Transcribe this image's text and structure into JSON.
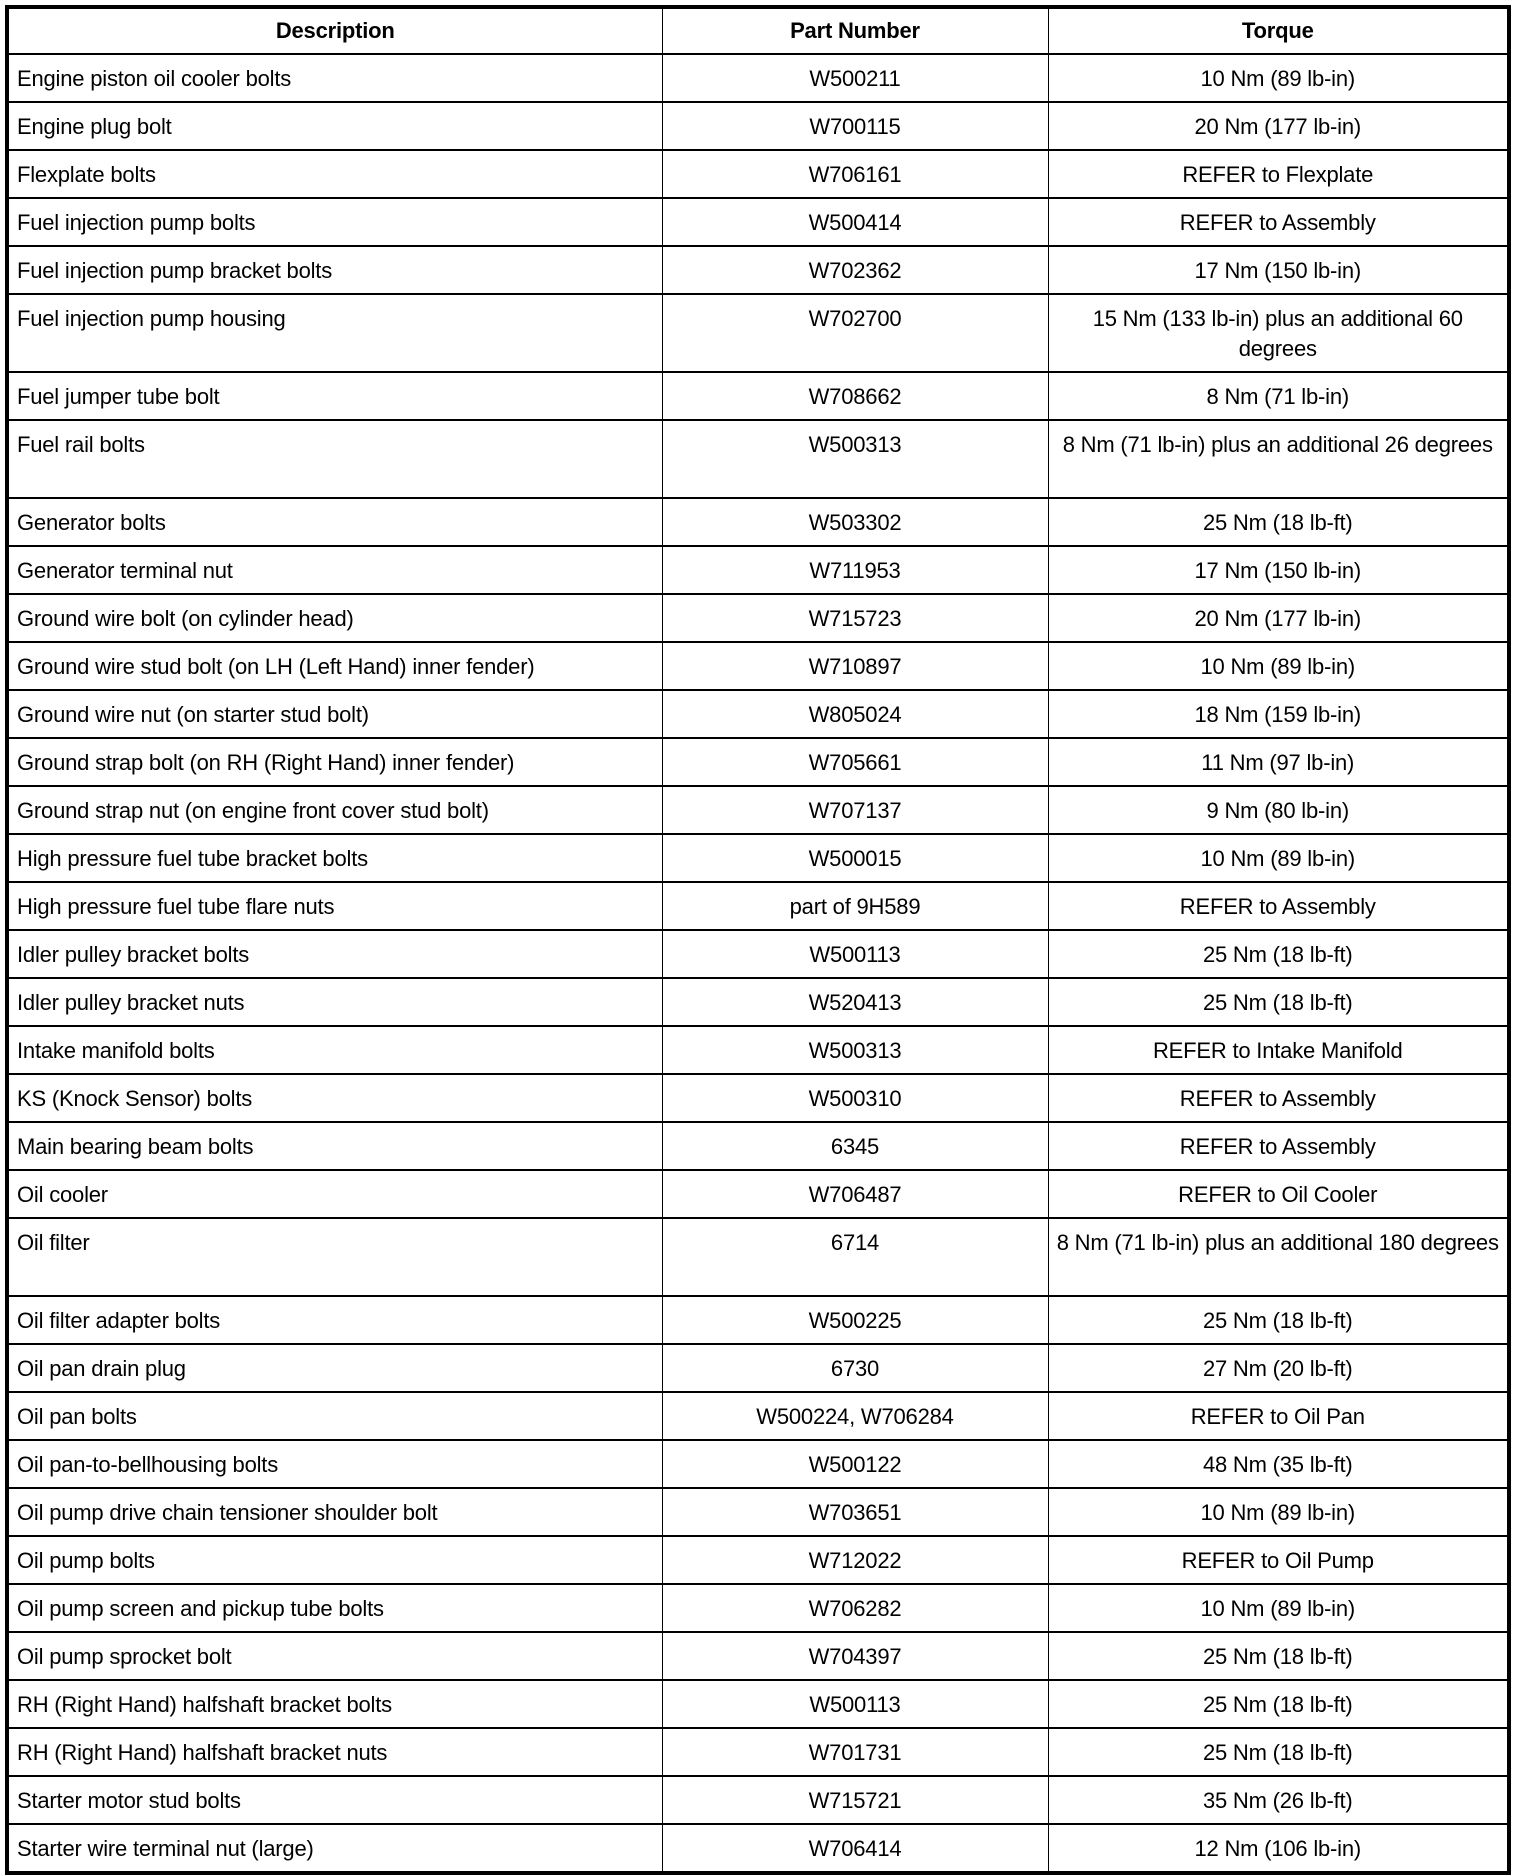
{
  "table": {
    "headers": [
      "Description",
      "Part Number",
      "Torque"
    ],
    "rows": [
      [
        "Engine piston oil cooler bolts",
        "W500211",
        "10 Nm (89 lb-in)"
      ],
      [
        "Engine plug bolt",
        "W700115",
        "20 Nm (177 lb-in)"
      ],
      [
        "Flexplate bolts",
        "W706161",
        "REFER to Flexplate"
      ],
      [
        "Fuel injection pump bolts",
        "W500414",
        "REFER to Assembly"
      ],
      [
        "Fuel injection pump bracket bolts",
        "W702362",
        "17 Nm (150 lb-in)"
      ],
      [
        "Fuel injection pump housing",
        "W702700",
        "15 Nm (133 lb-in) plus an additional 60 degrees"
      ],
      [
        "Fuel jumper tube bolt",
        "W708662",
        "8 Nm (71 lb-in)"
      ],
      [
        "Fuel rail bolts",
        "W500313",
        "8 Nm (71 lb-in) plus an additional 26 degrees"
      ],
      [
        "Generator bolts",
        "W503302",
        "25 Nm (18 lb-ft)"
      ],
      [
        "Generator terminal nut",
        "W711953",
        "17 Nm (150 lb-in)"
      ],
      [
        "Ground wire bolt (on cylinder head)",
        "W715723",
        "20 Nm (177 lb-in)"
      ],
      [
        "Ground wire stud bolt (on LH (Left Hand) inner fender)",
        "W710897",
        "10 Nm (89 lb-in)"
      ],
      [
        "Ground wire nut (on starter stud bolt)",
        "W805024",
        "18 Nm (159 lb-in)"
      ],
      [
        "Ground strap bolt (on RH (Right Hand) inner fender)",
        "W705661",
        "11 Nm (97 lb-in)"
      ],
      [
        "Ground strap nut (on engine front cover stud bolt)",
        "W707137",
        "9 Nm (80 lb-in)"
      ],
      [
        "High pressure fuel tube bracket bolts",
        "W500015",
        "10 Nm (89 lb-in)"
      ],
      [
        "High pressure fuel tube flare nuts",
        "part of 9H589",
        "REFER to Assembly"
      ],
      [
        "Idler pulley bracket bolts",
        "W500113",
        "25 Nm (18 lb-ft)"
      ],
      [
        "Idler pulley bracket nuts",
        "W520413",
        "25 Nm (18 lb-ft)"
      ],
      [
        "Intake manifold bolts",
        "W500313",
        "REFER to Intake Manifold"
      ],
      [
        "KS (Knock Sensor) bolts",
        "W500310",
        "REFER to Assembly"
      ],
      [
        "Main bearing beam bolts",
        "6345",
        "REFER to Assembly"
      ],
      [
        "Oil cooler",
        "W706487",
        "REFER to Oil Cooler"
      ],
      [
        "Oil filter",
        "6714",
        "8 Nm (71 lb-in) plus an additional 180 degrees"
      ],
      [
        "Oil filter adapter bolts",
        "W500225",
        "25 Nm (18 lb-ft)"
      ],
      [
        "Oil pan drain plug",
        "6730",
        "27 Nm (20 lb-ft)"
      ],
      [
        "Oil pan bolts",
        "W500224, W706284",
        "REFER to Oil Pan"
      ],
      [
        "Oil pan-to-bellhousing bolts",
        "W500122",
        "48 Nm (35 lb-ft)"
      ],
      [
        "Oil pump drive chain tensioner shoulder bolt",
        "W703651",
        "10 Nm (89 lb-in)"
      ],
      [
        "Oil pump bolts",
        "W712022",
        "REFER to Oil Pump"
      ],
      [
        "Oil pump screen and pickup tube bolts",
        "W706282",
        "10 Nm (89 lb-in)"
      ],
      [
        "Oil pump sprocket bolt",
        "W704397",
        "25 Nm (18 lb-ft)"
      ],
      [
        "RH (Right Hand) halfshaft bracket bolts",
        "W500113",
        "25 Nm (18 lb-ft)"
      ],
      [
        "RH (Right Hand) halfshaft bracket nuts",
        "W701731",
        "25 Nm (18 lb-ft)"
      ],
      [
        "Starter motor stud bolts",
        "W715721",
        "35 Nm (26 lb-ft)"
      ],
      [
        "Starter wire terminal nut (large)",
        "W706414",
        "12 Nm (106 lb-in)"
      ]
    ]
  }
}
